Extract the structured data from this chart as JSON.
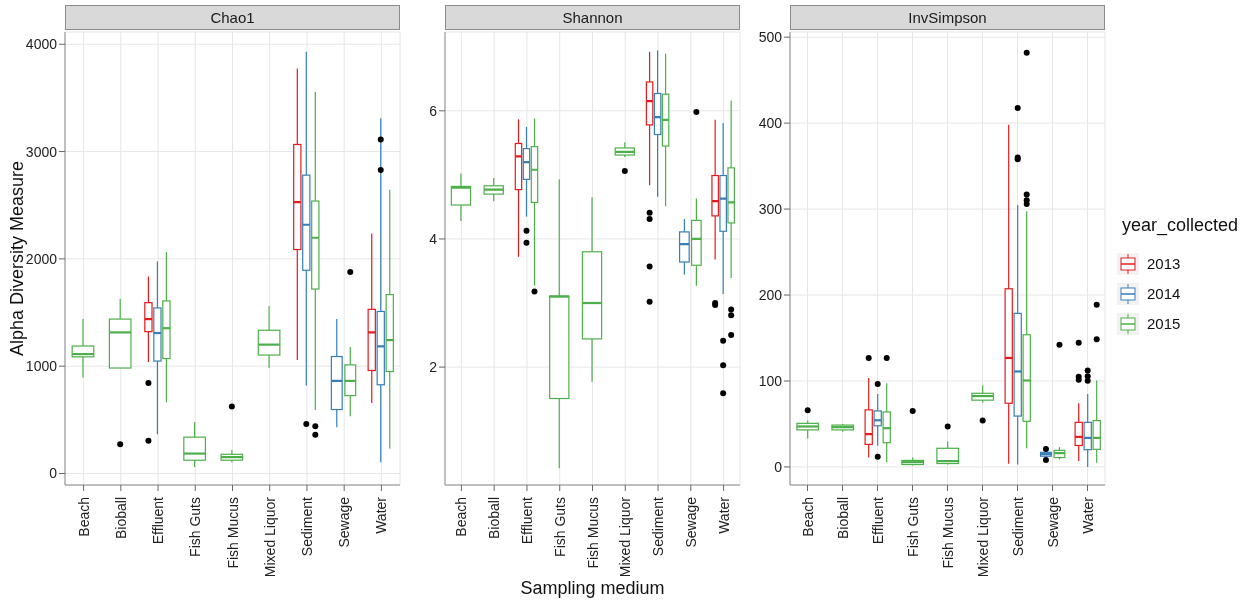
{
  "chart_data": [
    {
      "type": "box",
      "title": "Chao1",
      "ylabel": "Alpha Diversity Measure",
      "categories": [
        "Beach",
        "Bioball",
        "Effluent",
        "Fish Guts",
        "Fish Mucus",
        "Mixed Liquor",
        "Sediment",
        "Sewage",
        "Water"
      ],
      "ylim": [
        -107,
        4114
      ],
      "yticks": [
        0,
        1000,
        2000,
        3000,
        4000
      ],
      "grid": true,
      "legend": false,
      "series": [
        {
          "color": "#e41a1c",
          "boxes": [
            null,
            null,
            {
              "low": 1038,
              "q1": 1322,
              "median": 1439,
              "q3": 1592,
              "high": 1836,
              "outliers": [
                843,
                306
              ]
            },
            null,
            null,
            null,
            {
              "low": 1058,
              "q1": 2087,
              "median": 2529,
              "q3": 3066,
              "high": 3773
            },
            null,
            {
              "low": 658,
              "q1": 960,
              "median": 1315,
              "q3": 1530,
              "high": 2236
            }
          ]
        },
        {
          "color": "#377eb8",
          "boxes": [
            null,
            null,
            {
              "low": 365,
              "q1": 1048,
              "median": 1309,
              "q3": 1543,
              "high": 1976
            },
            null,
            null,
            null,
            {
              "low": 820,
              "q1": 1894,
              "median": 2318,
              "q3": 2780,
              "high": 3929,
              "outliers": [
                462
              ]
            },
            {
              "low": 430,
              "q1": 596,
              "median": 863,
              "q3": 1090,
              "high": 1439
            },
            {
              "low": 104,
              "q1": 827,
              "median": 1185,
              "q3": 1510,
              "high": 3311,
              "outliers": [
                3112,
                2829
              ]
            }
          ]
        },
        {
          "color": "#4daf4a",
          "boxes": [
            {
              "low": 895,
              "q1": 1087,
              "median": 1113,
              "q3": 1188,
              "high": 1440
            },
            {
              "low": 983,
              "q1": 983,
              "median": 1315,
              "q3": 1439,
              "high": 1628,
              "outliers": [
                273
              ]
            },
            {
              "low": 664,
              "q1": 1071,
              "median": 1354,
              "q3": 1608,
              "high": 2064
            },
            {
              "low": 60,
              "q1": 124,
              "median": 186,
              "q3": 339,
              "high": 480
            },
            {
              "low": 104,
              "q1": 124,
              "median": 153,
              "q3": 179,
              "high": 218,
              "outliers": [
                625
              ]
            },
            {
              "low": 983,
              "q1": 1104,
              "median": 1201,
              "q3": 1335,
              "high": 1559
            },
            {
              "low": 592,
              "q1": 1719,
              "median": 2197,
              "q3": 2539,
              "high": 3555,
              "outliers": [
                440,
                361
              ]
            },
            {
              "low": 534,
              "q1": 726,
              "median": 863,
              "q3": 1012,
              "high": 1180,
              "outliers": [
                1878
              ]
            },
            {
              "low": 234,
              "q1": 950,
              "median": 1243,
              "q3": 1667,
              "high": 2643
            }
          ]
        }
      ]
    },
    {
      "type": "box",
      "title": "Shannon",
      "xlabel": "Sampling medium",
      "categories": [
        "Beach",
        "Bioball",
        "Effluent",
        "Fish Guts",
        "Fish Mucus",
        "Mixed Liquor",
        "Sediment",
        "Sewage",
        "Water"
      ],
      "ylim": [
        0.16,
        7.23
      ],
      "yticks": [
        2,
        4,
        6
      ],
      "grid": true,
      "legend": false,
      "series": [
        {
          "color": "#e41a1c",
          "boxes": [
            null,
            null,
            {
              "low": 3.72,
              "q1": 4.77,
              "median": 5.29,
              "q3": 5.49,
              "high": 5.87
            },
            null,
            null,
            null,
            {
              "low": 4.84,
              "q1": 5.78,
              "median": 6.15,
              "q3": 6.45,
              "high": 6.92,
              "outliers": [
                4.41,
                4.31,
                3.57,
                3.02
              ]
            },
            null,
            {
              "low": 3.68,
              "q1": 4.36,
              "median": 4.59,
              "q3": 4.99,
              "high": 5.86,
              "outliers": [
                3.0,
                2.97
              ]
            }
          ]
        },
        {
          "color": "#377eb8",
          "boxes": [
            null,
            null,
            {
              "low": 4.35,
              "q1": 4.93,
              "median": 5.2,
              "q3": 5.41,
              "high": 5.75,
              "outliers": [
                4.13,
                3.94
              ]
            },
            null,
            null,
            null,
            {
              "low": 4.66,
              "q1": 5.63,
              "median": 5.9,
              "q3": 6.27,
              "high": 6.94
            },
            {
              "low": 3.44,
              "q1": 3.64,
              "median": 3.92,
              "q3": 4.11,
              "high": 4.31
            },
            {
              "low": 3.14,
              "q1": 4.12,
              "median": 4.63,
              "q3": 4.99,
              "high": 5.81,
              "outliers": [
                2.41,
                2.03,
                1.59
              ]
            }
          ]
        },
        {
          "color": "#4daf4a",
          "boxes": [
            {
              "low": 4.28,
              "q1": 4.53,
              "median": 4.8,
              "q3": 4.82,
              "high": 5.02
            },
            {
              "low": 4.59,
              "q1": 4.7,
              "median": 4.77,
              "q3": 4.83,
              "high": 4.95
            },
            {
              "low": 3.27,
              "q1": 4.57,
              "median": 5.08,
              "q3": 5.44,
              "high": 5.88,
              "outliers": [
                3.18
              ]
            },
            {
              "low": 0.42,
              "q1": 1.51,
              "median": 3.1,
              "q3": 3.11,
              "high": 4.93
            },
            {
              "low": 1.77,
              "q1": 2.44,
              "median": 3.0,
              "q3": 3.8,
              "high": 4.65
            },
            {
              "low": 5.28,
              "q1": 5.31,
              "median": 5.36,
              "q3": 5.42,
              "high": 5.51,
              "outliers": [
                5.06
              ]
            },
            {
              "low": 4.51,
              "q1": 5.45,
              "median": 5.86,
              "q3": 6.26,
              "high": 6.89
            },
            {
              "low": 3.27,
              "q1": 3.59,
              "median": 4.0,
              "q3": 4.29,
              "high": 4.63,
              "outliers": [
                5.98
              ]
            },
            {
              "low": 3.39,
              "q1": 4.25,
              "median": 4.57,
              "q3": 5.11,
              "high": 6.16,
              "outliers": [
                2.9,
                2.81,
                2.5
              ]
            }
          ]
        }
      ]
    },
    {
      "type": "box",
      "title": "InvSimpson",
      "legend_title": "year_collected",
      "categories": [
        "Beach",
        "Bioball",
        "Effluent",
        "Fish Guts",
        "Fish Mucus",
        "Mixed Liquor",
        "Sediment",
        "Sewage",
        "Water"
      ],
      "ylim": [
        -21,
        506
      ],
      "yticks": [
        0,
        100,
        200,
        300,
        400,
        500
      ],
      "grid": true,
      "legend": "right",
      "series": [
        {
          "name": "2013",
          "color": "#e41a1c",
          "boxes": [
            null,
            null,
            {
              "low": 10.9,
              "q1": 26.2,
              "median": 38.2,
              "q3": 66.4,
              "high": 103.5,
              "outliers": [
                126.8
              ]
            },
            null,
            null,
            null,
            {
              "low": 3.6,
              "q1": 74.1,
              "median": 126.8,
              "q3": 207.3,
              "high": 398
            },
            null,
            {
              "low": 6.8,
              "q1": 25,
              "median": 35,
              "q3": 51.9,
              "high": 74,
              "outliers": [
                144.5,
                105,
                101.4
              ]
            }
          ]
        },
        {
          "name": "2014",
          "color": "#377eb8",
          "boxes": [
            null,
            null,
            {
              "low": 25,
              "q1": 47.9,
              "median": 54.3,
              "q3": 65.2,
              "high": 85,
              "outliers": [
                96.6,
                12
              ]
            },
            null,
            null,
            null,
            {
              "low": 2.8,
              "q1": 59.2,
              "median": 111.1,
              "q3": 178.7,
              "high": 304.8,
              "outliers": [
                417.5,
                360,
                358
              ]
            },
            {
              "low": 10.5,
              "q1": 12.5,
              "median": 14.9,
              "q3": 17,
              "high": 19.5,
              "outliers": [
                21,
                8.1
              ]
            },
            {
              "low": 0,
              "q1": 20.1,
              "median": 33.8,
              "q3": 51.9,
              "high": 85,
              "outliers": [
                112.3,
                105.5,
                100.2
              ]
            }
          ]
        },
        {
          "name": "2015",
          "color": "#4daf4a",
          "boxes": [
            {
              "low": 33,
              "q1": 43.1,
              "median": 47.1,
              "q3": 50.7,
              "high": 54,
              "outliers": [
                66
              ]
            },
            {
              "low": 41,
              "q1": 43.1,
              "median": 46.3,
              "q3": 48.7,
              "high": 50
            },
            {
              "low": 5.6,
              "q1": 28.2,
              "median": 45.1,
              "q3": 64,
              "high": 97.4,
              "outliers": [
                126.8
              ]
            },
            {
              "low": 1.6,
              "q1": 2.8,
              "median": 5.6,
              "q3": 7.6,
              "high": 11,
              "outliers": [
                65.2
              ]
            },
            {
              "low": 2.8,
              "q1": 4,
              "median": 6.8,
              "q3": 21.7,
              "high": 30,
              "outliers": [
                47.1
              ]
            },
            {
              "low": 75,
              "q1": 77.7,
              "median": 82.5,
              "q3": 85.7,
              "high": 95,
              "outliers": [
                54
              ]
            },
            {
              "low": 21.7,
              "q1": 53.1,
              "median": 100.6,
              "q3": 153.8,
              "high": 297.5,
              "outliers": [
                481.9,
                317,
                310.4,
                306
              ]
            },
            {
              "low": 8.9,
              "q1": 10.9,
              "median": 16.1,
              "q3": 19.3,
              "high": 23,
              "outliers": [
                142.1
              ]
            },
            {
              "low": 4.8,
              "q1": 20.5,
              "median": 33.8,
              "q3": 53.9,
              "high": 100.6,
              "outliers": [
                188.8,
                148.6
              ]
            }
          ]
        }
      ]
    }
  ]
}
